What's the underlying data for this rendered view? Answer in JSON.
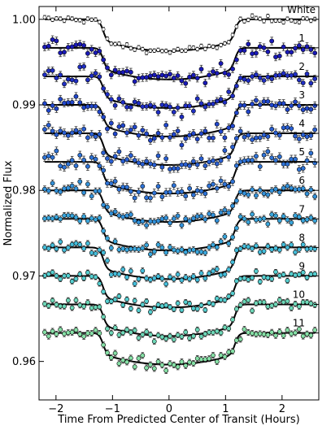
{
  "chart_data": {
    "type": "scatter",
    "title": "",
    "xlabel": "Time From Predicted Center of Transit (Hours)",
    "ylabel": "Normalized Flux",
    "xlim": [
      -2.3,
      2.65
    ],
    "ylim": [
      0.9555,
      1.0015
    ],
    "x_ticks": [
      -2,
      -1,
      0,
      1,
      2
    ],
    "x_tick_labels": [
      "−2",
      "−1",
      "0",
      "1",
      "2"
    ],
    "y_ticks": [
      0.96,
      0.97,
      0.98,
      0.99,
      1.0
    ],
    "y_tick_labels": [
      "0.96",
      "0.97",
      "0.98",
      "0.99",
      "1.00"
    ],
    "grid": false,
    "model": {
      "ingress_mid": -1.17,
      "egress_mid": 1.17,
      "ramp_width": 0.18,
      "depth": 0.0025,
      "limb_darkening": 0.0012
    },
    "time_samples": {
      "start": -2.2,
      "end": 2.58,
      "count": 70
    },
    "offset_ticks": true,
    "series": [
      {
        "label": "White",
        "baseline": 1.0,
        "color": "#ffffff",
        "scatter": 0.00018,
        "error": 0.00022
      },
      {
        "label": "1",
        "baseline": 0.99667,
        "color": "#1a1ab8",
        "scatter": 0.00045,
        "error": 0.00045
      },
      {
        "label": "2",
        "baseline": 0.99333,
        "color": "#1f2ec4",
        "scatter": 0.00042,
        "error": 0.00042
      },
      {
        "label": "3",
        "baseline": 0.99,
        "color": "#2147cc",
        "scatter": 0.00048,
        "error": 0.00045
      },
      {
        "label": "4",
        "baseline": 0.98667,
        "color": "#2a5fd2",
        "scatter": 0.00045,
        "error": 0.00045
      },
      {
        "label": "5",
        "baseline": 0.98333,
        "color": "#2f73d6",
        "scatter": 0.0005,
        "error": 0.00046
      },
      {
        "label": "6",
        "baseline": 0.98,
        "color": "#3391d9",
        "scatter": 0.00038,
        "error": 0.00038
      },
      {
        "label": "7",
        "baseline": 0.97667,
        "color": "#3aa6dc",
        "scatter": 0.00036,
        "error": 0.00036
      },
      {
        "label": "8",
        "baseline": 0.97333,
        "color": "#45bedb",
        "scatter": 0.00034,
        "error": 0.00034
      },
      {
        "label": "9",
        "baseline": 0.97,
        "color": "#56cfd0",
        "scatter": 0.0003,
        "error": 0.0003
      },
      {
        "label": "10",
        "baseline": 0.96667,
        "color": "#6ed8b8",
        "scatter": 0.00032,
        "error": 0.00032
      },
      {
        "label": "11",
        "baseline": 0.96333,
        "color": "#86e0a6",
        "scatter": 0.00034,
        "error": 0.00034
      }
    ]
  }
}
